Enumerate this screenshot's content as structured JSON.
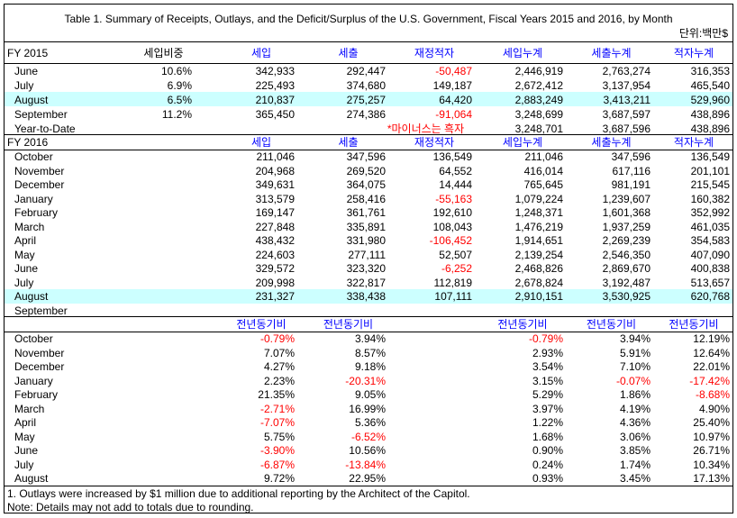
{
  "title": "Table 1. Summary of Receipts, Outlays, and the Deficit/Surplus of the U.S. Government, Fiscal Years 2015 and 2016, by Month",
  "unit": "단위:백만$",
  "sections": [
    {
      "label": "FY 2015",
      "headers": [
        "세입비중",
        "세입",
        "세출",
        "재정적자",
        "세입누계",
        "세출누계",
        "적자누계"
      ],
      "rows": [
        {
          "label": "June",
          "cells": [
            "10.6%",
            "342,933",
            "292,447",
            "-50,487",
            "2,446,919",
            "2,763,274",
            "316,353"
          ]
        },
        {
          "label": "July",
          "cells": [
            "6.9%",
            "225,493",
            "374,680",
            "149,187",
            "2,672,412",
            "3,137,954",
            "465,540"
          ]
        },
        {
          "label": "August",
          "highlight": true,
          "cells": [
            "6.5%",
            "210,837",
            "275,257",
            "64,420",
            "2,883,249",
            "3,413,211",
            "529,960"
          ]
        },
        {
          "label": "September",
          "cells": [
            "11.2%",
            "365,450",
            "274,386",
            "-91,064",
            "3,248,699",
            "3,687,597",
            "438,896"
          ]
        },
        {
          "label": "Year-to-Date",
          "cells": [
            null,
            null,
            null,
            "*마이너스는 흑자",
            "3,248,701",
            "3,687,596",
            "438,896"
          ]
        }
      ]
    },
    {
      "label": "FY 2016",
      "headers": [
        null,
        "세입",
        "세출",
        "재정적자",
        "세입누계",
        "세출누계",
        "적자누계"
      ],
      "rows": [
        {
          "label": "October",
          "cells": [
            null,
            "211,046",
            "347,596",
            "136,549",
            "211,046",
            "347,596",
            "136,549"
          ]
        },
        {
          "label": "November",
          "cells": [
            null,
            "204,968",
            "269,520",
            "64,552",
            "416,014",
            "617,116",
            "201,101"
          ]
        },
        {
          "label": "December",
          "cells": [
            null,
            "349,631",
            "364,075",
            "14,444",
            "765,645",
            "981,191",
            "215,545"
          ]
        },
        {
          "label": "January",
          "cells": [
            null,
            "313,579",
            "258,416",
            "-55,163",
            "1,079,224",
            "1,239,607",
            "160,382"
          ]
        },
        {
          "label": "February",
          "cells": [
            null,
            "169,147",
            "361,761",
            "192,610",
            "1,248,371",
            "1,601,368",
            "352,992"
          ]
        },
        {
          "label": "March",
          "cells": [
            null,
            "227,848",
            "335,891",
            "108,043",
            "1,476,219",
            "1,937,259",
            "461,035"
          ]
        },
        {
          "label": "April",
          "cells": [
            null,
            "438,432",
            "331,980",
            "-106,452",
            "1,914,651",
            "2,269,239",
            "354,583"
          ]
        },
        {
          "label": "May",
          "cells": [
            null,
            "224,603",
            "277,111",
            "52,507",
            "2,139,254",
            "2,546,350",
            "407,090"
          ]
        },
        {
          "label": "June",
          "cells": [
            null,
            "329,572",
            "323,320",
            "-6,252",
            "2,468,826",
            "2,869,670",
            "400,838"
          ]
        },
        {
          "label": "July",
          "cells": [
            null,
            "209,998",
            "322,817",
            "112,819",
            "2,678,824",
            "3,192,487",
            "513,657"
          ]
        },
        {
          "label": "August",
          "highlight": true,
          "cells": [
            null,
            "231,327",
            "338,438",
            "107,111",
            "2,910,151",
            "3,530,925",
            "620,768"
          ]
        },
        {
          "label": "September",
          "cells": [
            null,
            null,
            null,
            null,
            null,
            null,
            null
          ]
        }
      ]
    },
    {
      "label": null,
      "headers": [
        null,
        "전년동기비",
        "전년동기비",
        null,
        "전년동기비",
        "전년동기비",
        "전년동기비"
      ],
      "rows": [
        {
          "label": "October",
          "cells": [
            null,
            "-0.79%",
            "3.94%",
            null,
            "-0.79%",
            "3.94%",
            "12.19%"
          ]
        },
        {
          "label": "November",
          "cells": [
            null,
            "7.07%",
            "8.57%",
            null,
            "2.93%",
            "5.91%",
            "12.64%"
          ]
        },
        {
          "label": "December",
          "cells": [
            null,
            "4.27%",
            "9.18%",
            null,
            "3.54%",
            "7.10%",
            "22.01%"
          ]
        },
        {
          "label": "January",
          "cells": [
            null,
            "2.23%",
            "-20.31%",
            null,
            "3.15%",
            "-0.07%",
            "-17.42%"
          ]
        },
        {
          "label": "February",
          "cells": [
            null,
            "21.35%",
            "9.05%",
            null,
            "5.29%",
            "1.86%",
            "-8.68%"
          ]
        },
        {
          "label": "March",
          "cells": [
            null,
            "-2.71%",
            "16.99%",
            null,
            "3.97%",
            "4.19%",
            "4.90%"
          ]
        },
        {
          "label": "April",
          "cells": [
            null,
            "-7.07%",
            "5.36%",
            null,
            "1.22%",
            "4.36%",
            "25.40%"
          ]
        },
        {
          "label": "May",
          "cells": [
            null,
            "5.75%",
            "-6.52%",
            null,
            "1.68%",
            "3.06%",
            "10.97%"
          ]
        },
        {
          "label": "June",
          "cells": [
            null,
            "-3.90%",
            "10.56%",
            null,
            "0.90%",
            "3.85%",
            "26.71%"
          ]
        },
        {
          "label": "July",
          "cells": [
            null,
            "-6.87%",
            "-13.84%",
            null,
            "0.24%",
            "1.74%",
            "10.34%"
          ]
        },
        {
          "label": "August",
          "cells": [
            null,
            "9.72%",
            "22.95%",
            null,
            "0.93%",
            "3.45%",
            "17.13%"
          ]
        }
      ]
    }
  ],
  "notes": [
    "1. Outlays were increased by $1 million due to additional reporting by the Architect of the Capitol.",
    "Note: Details may not add to totals due to rounding."
  ]
}
